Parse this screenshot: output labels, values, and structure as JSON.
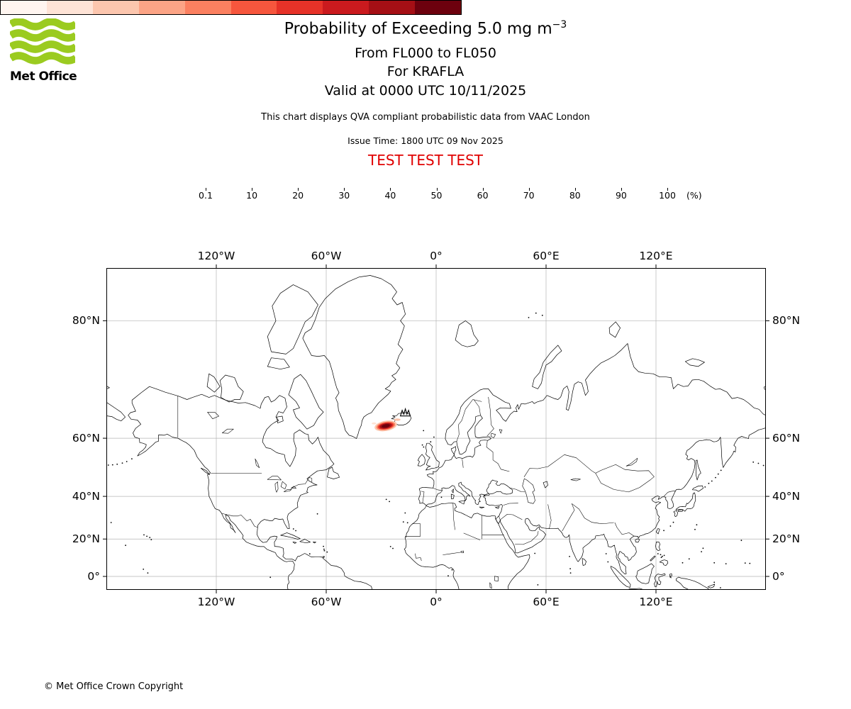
{
  "header": {
    "logo_text": "Met Office",
    "title_prefix": "Probability of Exceeding 5.0 mg m",
    "title_exponent": "−3",
    "subtitle1": "From FL000 to FL050",
    "subtitle2": "For KRAFLA",
    "subtitle3": "Valid at 0000 UTC 10/11/2025",
    "note": "This chart displays QVA compliant probabilistic data from VAAC London",
    "issue_time": "Issue Time: 1800 UTC 09 Nov 2025",
    "test_banner": "TEST TEST TEST"
  },
  "colors": {
    "logo_green": "#9BCB20",
    "test_red": "#E00000",
    "gridline": "#b5b5b5",
    "coastline": "#000000"
  },
  "colorbar": {
    "tick_labels": [
      "0.1",
      "10",
      "20",
      "30",
      "40",
      "50",
      "60",
      "70",
      "80",
      "90",
      "100"
    ],
    "unit_label": "(%)",
    "colors": [
      "#fff5f0",
      "#fee3d6",
      "#fcc6ae",
      "#fca486",
      "#fb8060",
      "#f6563d",
      "#e63228",
      "#ca1a1e",
      "#a50f15",
      "#6d010e"
    ]
  },
  "map": {
    "top_axis_labels": [
      "120°W",
      "60°W",
      "0°",
      "60°E",
      "120°E"
    ],
    "bottom_axis_labels": [
      "120°W",
      "60°W",
      "0°",
      "60°E",
      "120°E"
    ],
    "left_axis_labels": [
      "80°N",
      "60°N",
      "40°N",
      "20°N",
      "0°"
    ],
    "right_axis_labels": [
      "80°N",
      "60°N",
      "40°N",
      "20°N",
      "0°"
    ]
  },
  "footer": {
    "copyright": "© Met Office Crown Copyright"
  },
  "chart_data": {
    "type": "probability_exceedance_map",
    "projection": "mercator",
    "threshold_mg_m3": 5.0,
    "flight_level_from": "FL000",
    "flight_level_to": "FL050",
    "volcano_name": "KRAFLA",
    "valid_time": "0000 UTC 10/11/2025",
    "issue_time": "1800 UTC 09 Nov 2025",
    "source": "VAAC London",
    "colorbar_boundaries_pct": [
      0.1,
      10,
      20,
      30,
      40,
      50,
      60,
      70,
      80,
      90,
      100
    ],
    "lon_ticks_deg": [
      -120,
      -60,
      0,
      60,
      120
    ],
    "lat_ticks_deg": [
      80,
      60,
      40,
      20,
      0
    ],
    "lon_range_deg": [
      -180,
      180
    ],
    "lat_range_deg": [
      -7.3,
      84
    ],
    "volcano": {
      "name": "KRAFLA",
      "lon": -16.8,
      "lat": 65.7
    },
    "ash_cloud": {
      "center_lon": -27.5,
      "center_lat": 63.2,
      "rotation_deg": -10,
      "levels": [
        {
          "pct": 10,
          "a_deg": 6.2,
          "b_deg": 1.25,
          "color": "#fcc6ae"
        },
        {
          "pct": 30,
          "a_deg": 5.2,
          "b_deg": 1.0,
          "color": "#fb8060"
        },
        {
          "pct": 50,
          "a_deg": 4.3,
          "b_deg": 0.8,
          "color": "#e63228"
        },
        {
          "pct": 70,
          "a_deg": 3.4,
          "b_deg": 0.62,
          "color": "#a50f15"
        },
        {
          "pct": 90,
          "a_deg": 2.3,
          "b_deg": 0.42,
          "color": "#6d010e"
        }
      ],
      "fragments": [
        {
          "lon": -33.9,
          "lat": 63.8,
          "a_deg": 1.3,
          "b_deg": 0.25,
          "color": "#fee3d6"
        },
        {
          "lon": -31.4,
          "lat": 62.6,
          "a_deg": 1.0,
          "b_deg": 0.2,
          "color": "#fdd5c4"
        },
        {
          "lon": -21.2,
          "lat": 64.7,
          "a_deg": 1.8,
          "b_deg": 0.3,
          "color": "#fcc2a9"
        }
      ]
    }
  }
}
